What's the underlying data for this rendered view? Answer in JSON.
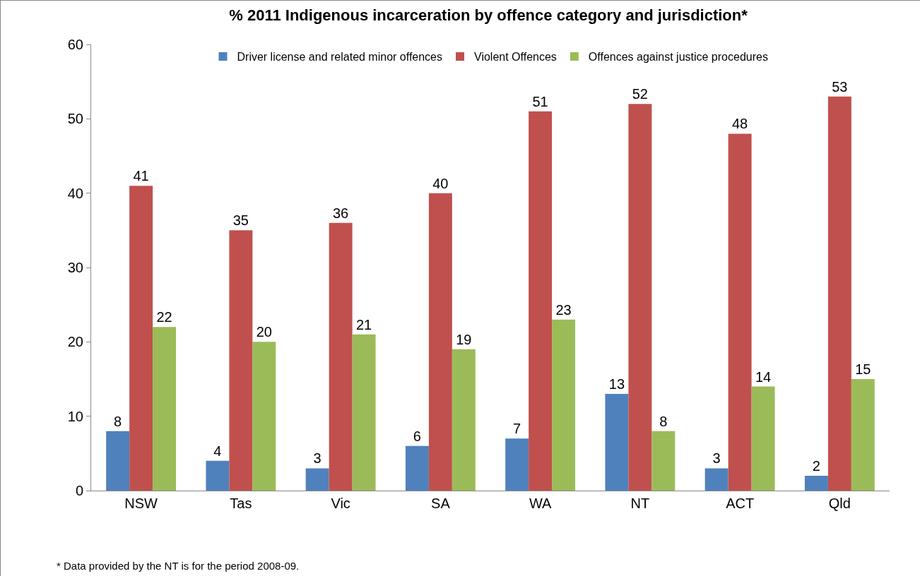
{
  "chart_data": {
    "type": "bar",
    "title": "% 2011 Indigenous incarceration by offence category and jurisdiction*",
    "categories": [
      "NSW",
      "Tas",
      "Vic",
      "SA",
      "WA",
      "NT",
      "ACT",
      "Qld"
    ],
    "series": [
      {
        "name": "Driver license and related minor offences",
        "color": "#4f81bd",
        "values": [
          8,
          4,
          3,
          6,
          7,
          13,
          3,
          2
        ]
      },
      {
        "name": "Violent Offences",
        "color": "#c0504d",
        "values": [
          41,
          35,
          36,
          40,
          51,
          52,
          48,
          53
        ]
      },
      {
        "name": "Offences against justice procedures",
        "color": "#9bbb59",
        "values": [
          22,
          20,
          21,
          19,
          23,
          8,
          14,
          15
        ]
      }
    ],
    "ylim": [
      0,
      60
    ],
    "yticks": [
      0,
      10,
      20,
      30,
      40,
      50,
      60
    ],
    "grid": false,
    "legend": "top",
    "data_labels": true,
    "annotations": [
      "* Data provided by the NT is for the period 2008-09."
    ]
  }
}
